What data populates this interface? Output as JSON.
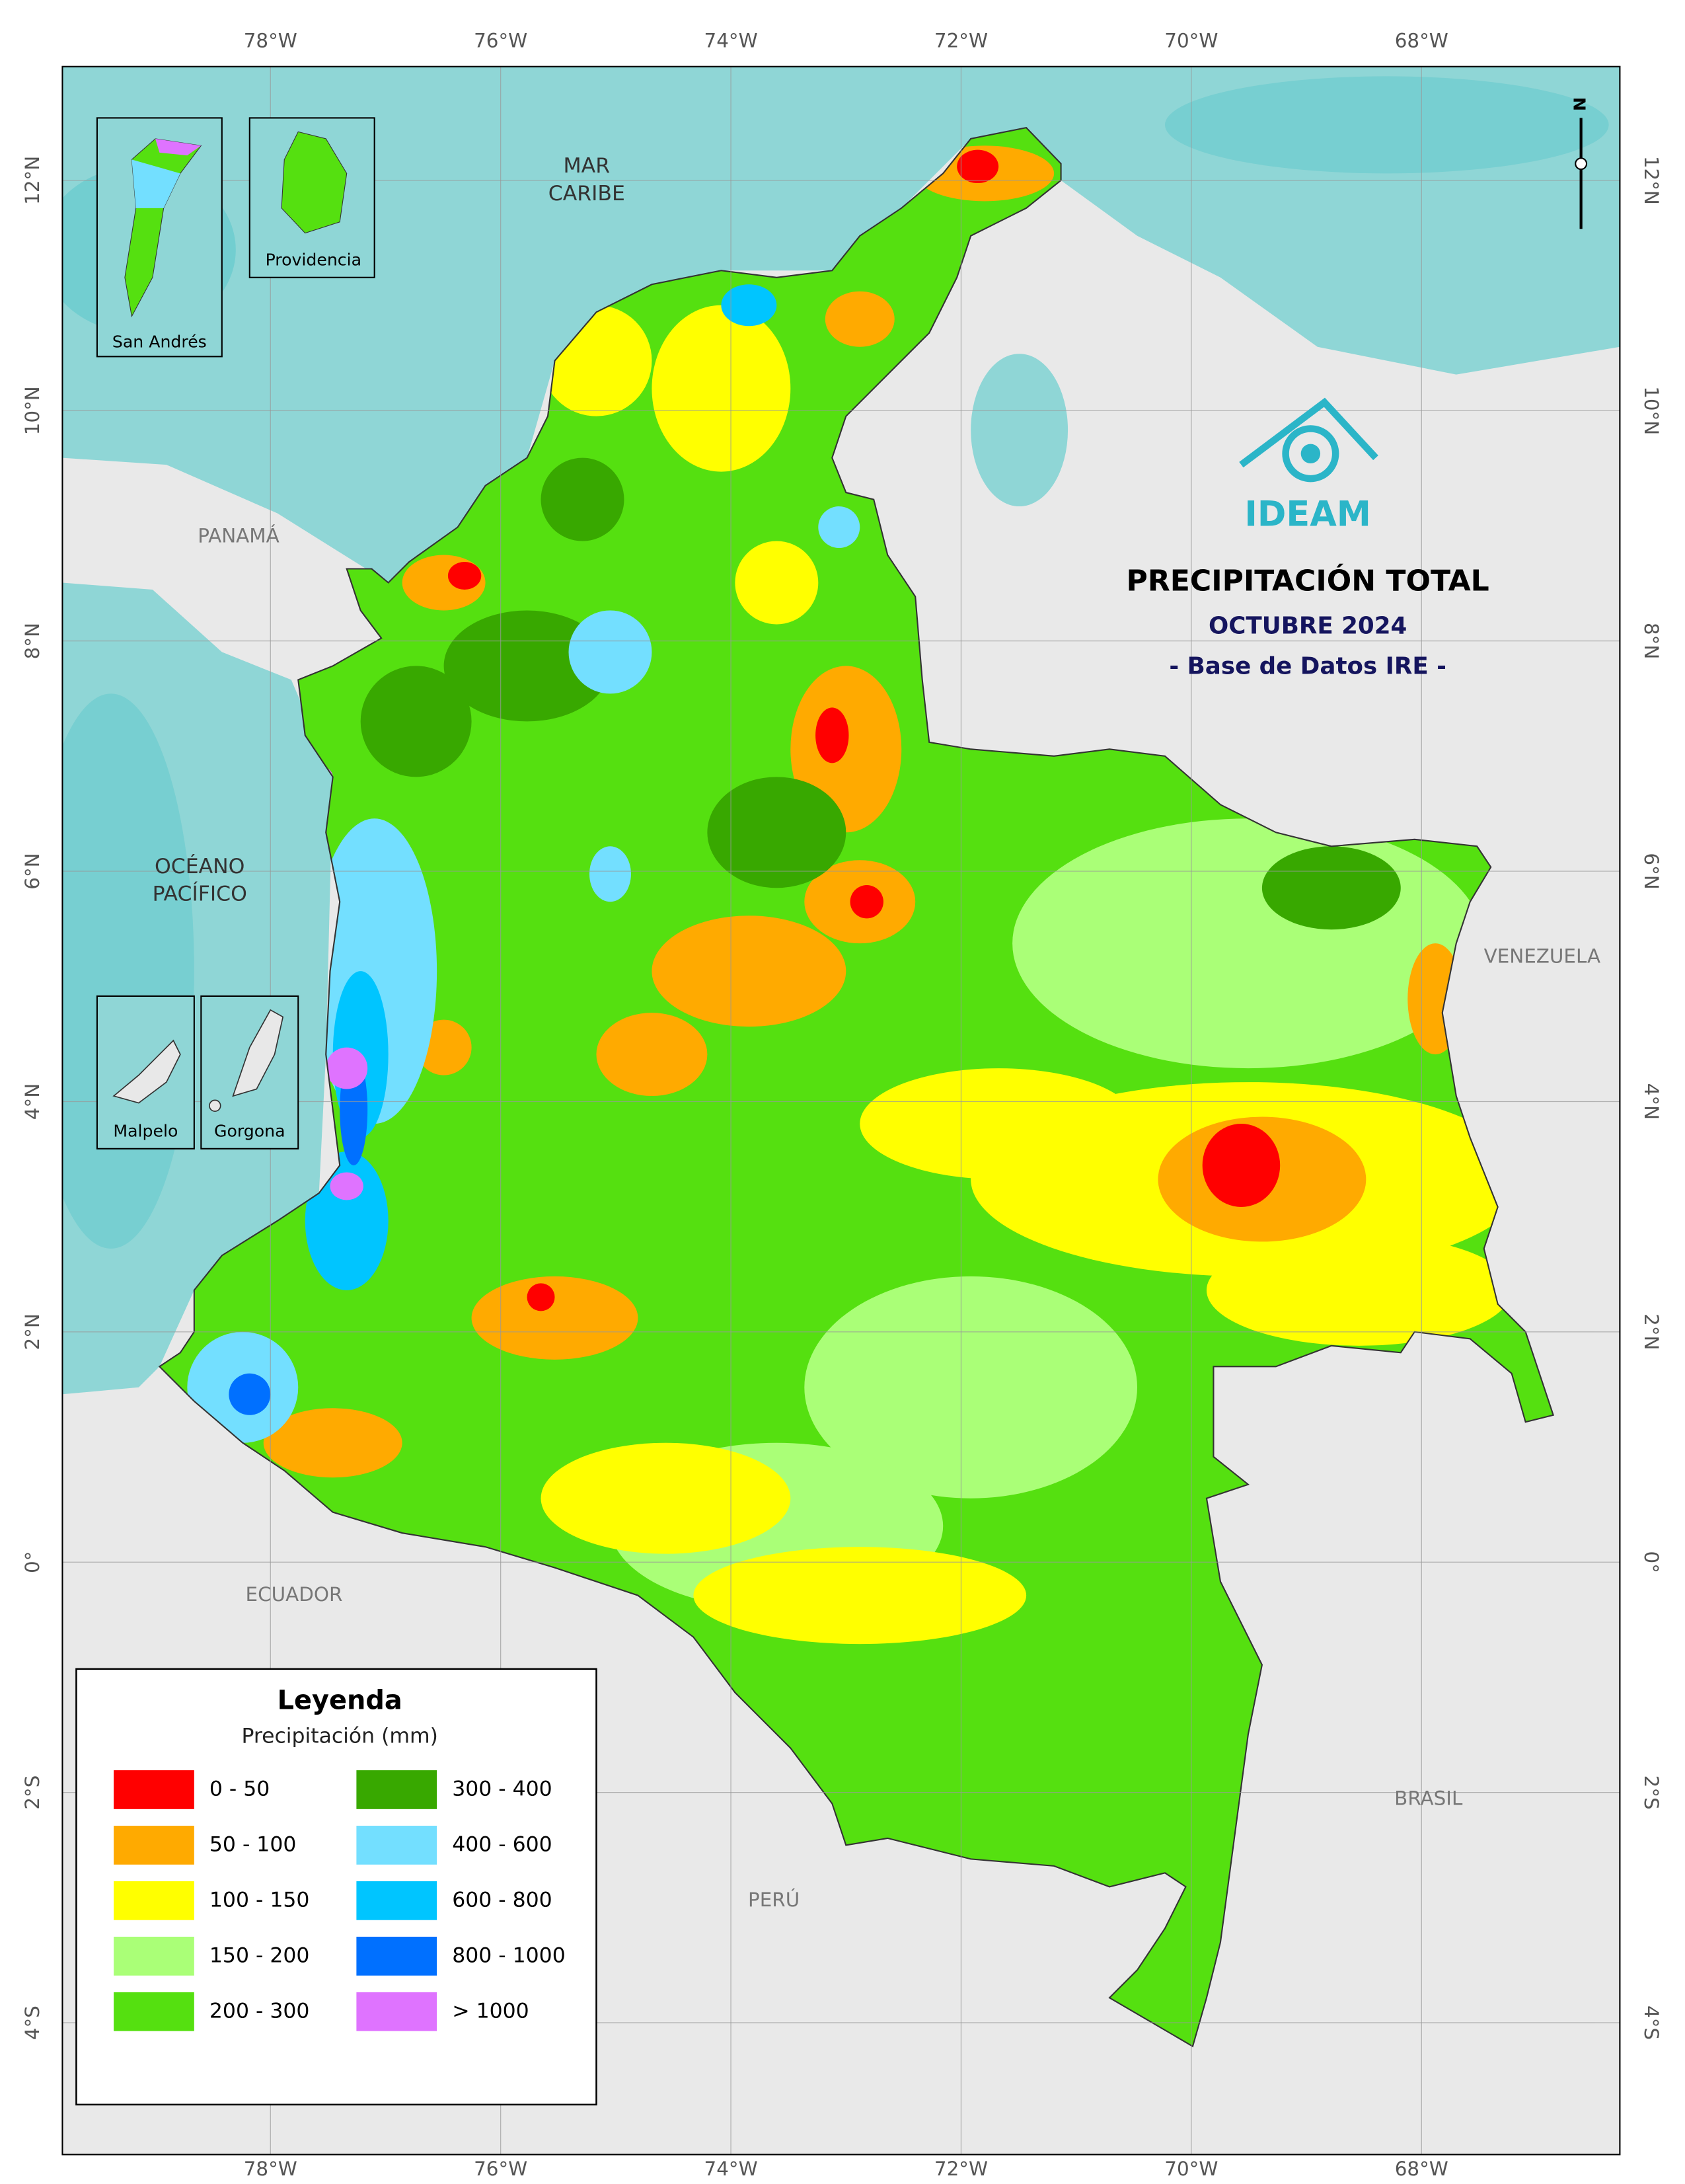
{
  "map": {
    "title": "PRECIPITACIÓN TOTAL",
    "subtitle": "OCTUBRE 2024",
    "source": "- Base de Datos IRE -",
    "logo_text": "IDEAM",
    "north_label": "N",
    "longitudes": [
      {
        "value": -78,
        "label": "78°W"
      },
      {
        "value": -76,
        "label": "76°W"
      },
      {
        "value": -74,
        "label": "74°W"
      },
      {
        "value": -72,
        "label": "72°W"
      },
      {
        "value": -70,
        "label": "70°W"
      },
      {
        "value": -68,
        "label": "68°W"
      }
    ],
    "latitudes": [
      {
        "value": 12,
        "label": "12°N"
      },
      {
        "value": 10,
        "label": "10°N"
      },
      {
        "value": 8,
        "label": "8°N"
      },
      {
        "value": 6,
        "label": "6°N"
      },
      {
        "value": 4,
        "label": "4°N"
      },
      {
        "value": 2,
        "label": "2°N"
      },
      {
        "value": 0,
        "label": "0°"
      },
      {
        "value": -2,
        "label": "2°S"
      },
      {
        "value": -4,
        "label": "4°S"
      }
    ],
    "seas": {
      "caribbean": [
        "MAR",
        "CARIBE"
      ],
      "pacific": [
        "OCÉANO",
        "PACÍFICO"
      ]
    },
    "countries": {
      "panama": "PANAMÁ",
      "venezuela": "VENEZUELA",
      "ecuador": "ECUADOR",
      "brasil": "BRASIL",
      "peru": "PERÚ"
    },
    "insets": [
      "San Andrés",
      "Providencia",
      "Malpelo",
      "Gorgona"
    ]
  },
  "legend": {
    "title": "Leyenda",
    "subtitle": "Precipitación (mm)",
    "classes": [
      {
        "label": "0 - 50",
        "color": "#ff0000"
      },
      {
        "label": "50 - 100",
        "color": "#ffaa00"
      },
      {
        "label": "100 - 150",
        "color": "#ffff00"
      },
      {
        "label": "150 - 200",
        "color": "#aaff77"
      },
      {
        "label": "200 - 300",
        "color": "#55e010"
      },
      {
        "label": "300 - 400",
        "color": "#38a800"
      },
      {
        "label": "400 - 600",
        "color": "#73dfff"
      },
      {
        "label": "600 - 800",
        "color": "#00c5ff"
      },
      {
        "label": "800 - 1000",
        "color": "#0070ff"
      },
      {
        "label": "> 1000",
        "color": "#df73ff"
      }
    ]
  }
}
